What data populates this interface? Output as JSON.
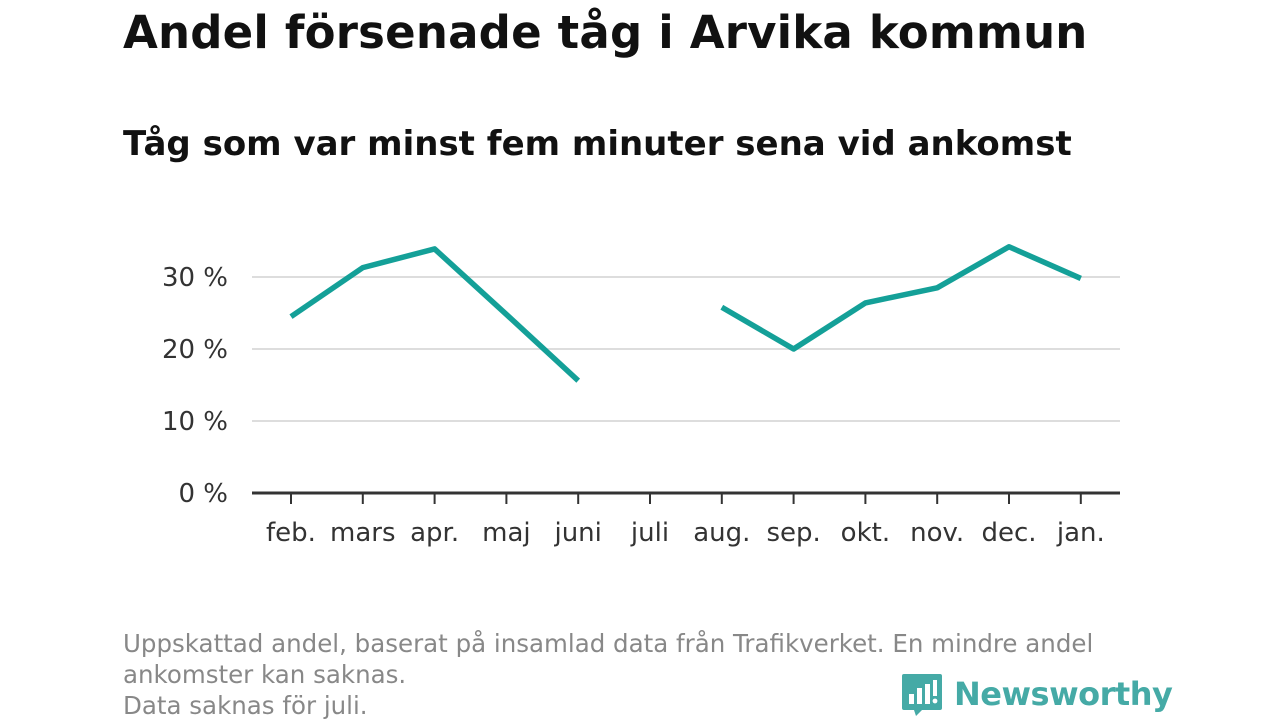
{
  "title": "Andel försenade tåg i Arvika kommun",
  "subtitle": "Tåg som var minst fem minuter sena vid ankomst",
  "footnote": {
    "line1": "Uppskattad andel, baserat på insamlad data från Trafikverket. En mindre andel",
    "line2": "ankomster kan saknas.",
    "line3": "Data saknas för juli."
  },
  "brand": {
    "name": "Newsworthy",
    "icon": "newsworthy-logo-icon",
    "color": "#45aaa6"
  },
  "colors": {
    "line": "#14a098",
    "grid": "#dddddd",
    "axis": "#333333",
    "text": "#333333"
  },
  "chart_data": {
    "type": "line",
    "title": "Andel försenade tåg i Arvika kommun",
    "subtitle": "Tåg som var minst fem minuter sena vid ankomst",
    "categories": [
      "feb.",
      "mars",
      "apr.",
      "maj",
      "juni",
      "juli",
      "aug.",
      "sep.",
      "okt.",
      "nov.",
      "dec.",
      "jan."
    ],
    "series": [
      {
        "values": [
          24.5,
          31.3,
          33.9,
          24.8,
          15.6,
          null,
          25.8,
          20.0,
          26.4,
          28.5,
          34.2,
          29.8
        ]
      }
    ],
    "y_ticks": [
      0,
      10,
      20,
      30
    ],
    "y_tick_labels": [
      "0 %",
      "10 %",
      "20 %",
      "30 %"
    ],
    "ylim": [
      0,
      40
    ],
    "grid": true,
    "xlabel": "",
    "ylabel": ""
  }
}
